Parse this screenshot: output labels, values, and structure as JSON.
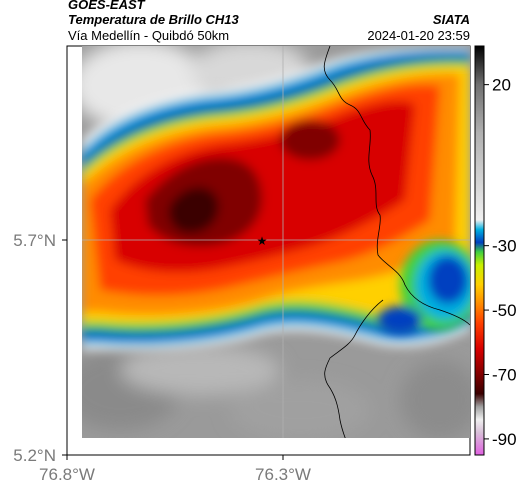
{
  "header": {
    "satellite": "GOES-EAST",
    "product": "Temperatura de Brillo CH13",
    "region": "Vía Medellín - Quibdó 50km",
    "institution": "SIATA",
    "timestamp": "2024-01-20 23:59"
  },
  "map": {
    "lat_ticks": [
      {
        "value": 5.7,
        "label": "5.7°N"
      },
      {
        "value": 5.2,
        "label": "5.2°N"
      }
    ],
    "lon_ticks": [
      {
        "value": -76.8,
        "label": "76.8°W"
      },
      {
        "value": -76.3,
        "label": "76.3°W"
      }
    ],
    "marker": {
      "symbol": "★",
      "name": "reference-point"
    }
  },
  "colorbar": {
    "ticks": [
      {
        "value": 20,
        "label": "20"
      },
      {
        "value": -30,
        "label": "-30"
      },
      {
        "value": -50,
        "label": "-50"
      },
      {
        "value": -70,
        "label": "-70"
      },
      {
        "value": -90,
        "label": "-90"
      }
    ],
    "range": [
      -95,
      32
    ],
    "stops": [
      {
        "v": -95,
        "c": "#e060e0"
      },
      {
        "v": -88,
        "c": "#d8c0d8"
      },
      {
        "v": -84,
        "c": "#f0f0f0"
      },
      {
        "v": -80,
        "c": "#a0a0a0"
      },
      {
        "v": -76,
        "c": "#3a0000"
      },
      {
        "v": -70,
        "c": "#800000"
      },
      {
        "v": -62,
        "c": "#d80000"
      },
      {
        "v": -54,
        "c": "#ff4000"
      },
      {
        "v": -48,
        "c": "#ff8c00"
      },
      {
        "v": -42,
        "c": "#ffd000"
      },
      {
        "v": -36,
        "c": "#c8f000"
      },
      {
        "v": -32,
        "c": "#40d040"
      },
      {
        "v": -29,
        "c": "#0040c0"
      },
      {
        "v": -25,
        "c": "#00b0e0"
      },
      {
        "v": -22,
        "c": "#f0f0f0"
      },
      {
        "v": 5,
        "c": "#b0b0b0"
      },
      {
        "v": 20,
        "c": "#707070"
      },
      {
        "v": 32,
        "c": "#000000"
      }
    ]
  }
}
